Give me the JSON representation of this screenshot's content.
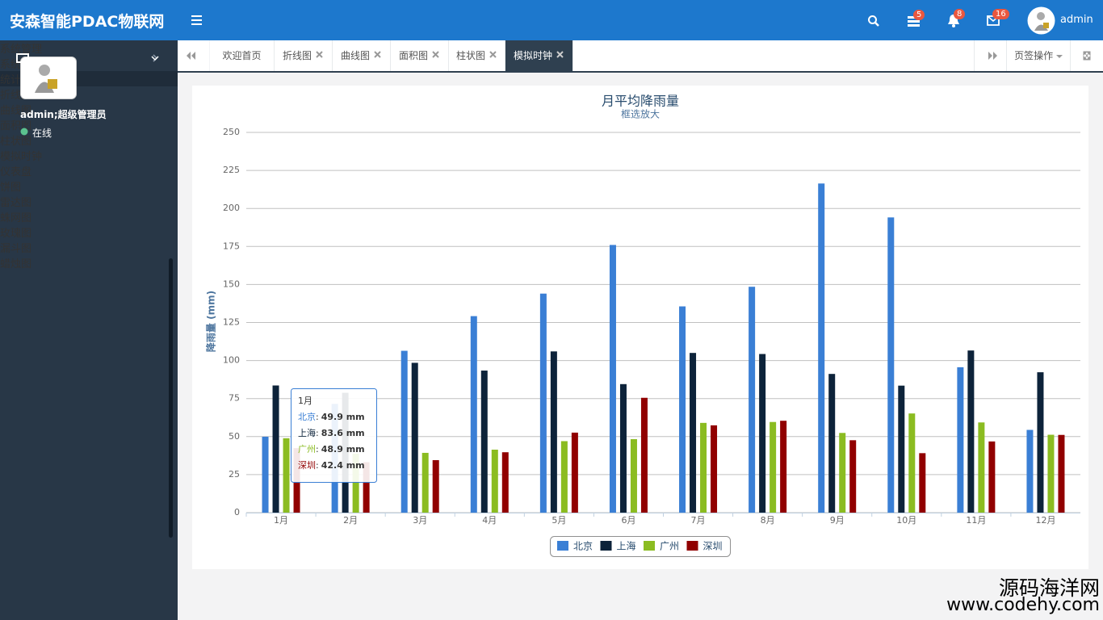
{
  "header": {
    "title": "安森智能PDAC物联网",
    "badges": [
      5,
      8,
      16
    ],
    "user": "admin"
  },
  "sidebar": {
    "user": "admin;超级管理员",
    "status": "在线",
    "menu": [
      "系统管理",
      "系统安全",
      "统计报表"
    ],
    "submenu": [
      "折线图",
      "曲线图",
      "面积图",
      "柱状图",
      "模拟时钟",
      "仪表盘",
      "饼图",
      "雷达图",
      "蛛网图",
      "玫瑰图",
      "漏斗图",
      "蜡烛图"
    ]
  },
  "tabs": {
    "items": [
      "欢迎首页",
      "折线图",
      "曲线图",
      "面积图",
      "柱状图",
      "模拟时钟"
    ],
    "active": 5,
    "actions": "页签操作"
  },
  "chart_data": {
    "type": "bar",
    "title": "月平均降雨量",
    "subtitle": "框选放大",
    "y_label": "降雨量 (mm)",
    "categories": [
      "1月",
      "2月",
      "3月",
      "4月",
      "5月",
      "6月",
      "7月",
      "8月",
      "9月",
      "10月",
      "11月",
      "12月"
    ],
    "series": [
      {
        "name": "北京",
        "color": "#3a7fd5",
        "values": [
          49.9,
          71.5,
          106.4,
          129.2,
          144.0,
          176.0,
          135.6,
          148.5,
          216.4,
          194.1,
          95.6,
          54.4
        ]
      },
      {
        "name": "上海",
        "color": "#0d233a",
        "values": [
          83.6,
          78.8,
          98.5,
          93.4,
          106.0,
          84.5,
          105.0,
          104.3,
          91.2,
          83.5,
          106.6,
          92.3
        ]
      },
      {
        "name": "广州",
        "color": "#8bbc21",
        "values": [
          48.9,
          38.8,
          39.3,
          41.4,
          47.0,
          48.3,
          59.0,
          59.6,
          52.4,
          65.2,
          59.3,
          51.2
        ]
      },
      {
        "name": "深圳",
        "color": "#910000",
        "values": [
          42.4,
          33.2,
          34.5,
          39.7,
          52.6,
          75.5,
          57.4,
          60.4,
          47.6,
          39.1,
          46.8,
          51.1
        ]
      }
    ],
    "ylim": [
      0,
      250
    ],
    "yticks": [
      0,
      25,
      50,
      75,
      100,
      125,
      150,
      175,
      200,
      225,
      250
    ],
    "grid": true,
    "legend": "bottom",
    "tooltip": {
      "separator": ":",
      "labels": [
        "49.9 mm",
        "83.6 mm",
        "48.9 mm",
        "42.4 mm"
      ]
    }
  },
  "watermark": {
    "name": "源码海洋网",
    "url": "www.codehy.com"
  }
}
